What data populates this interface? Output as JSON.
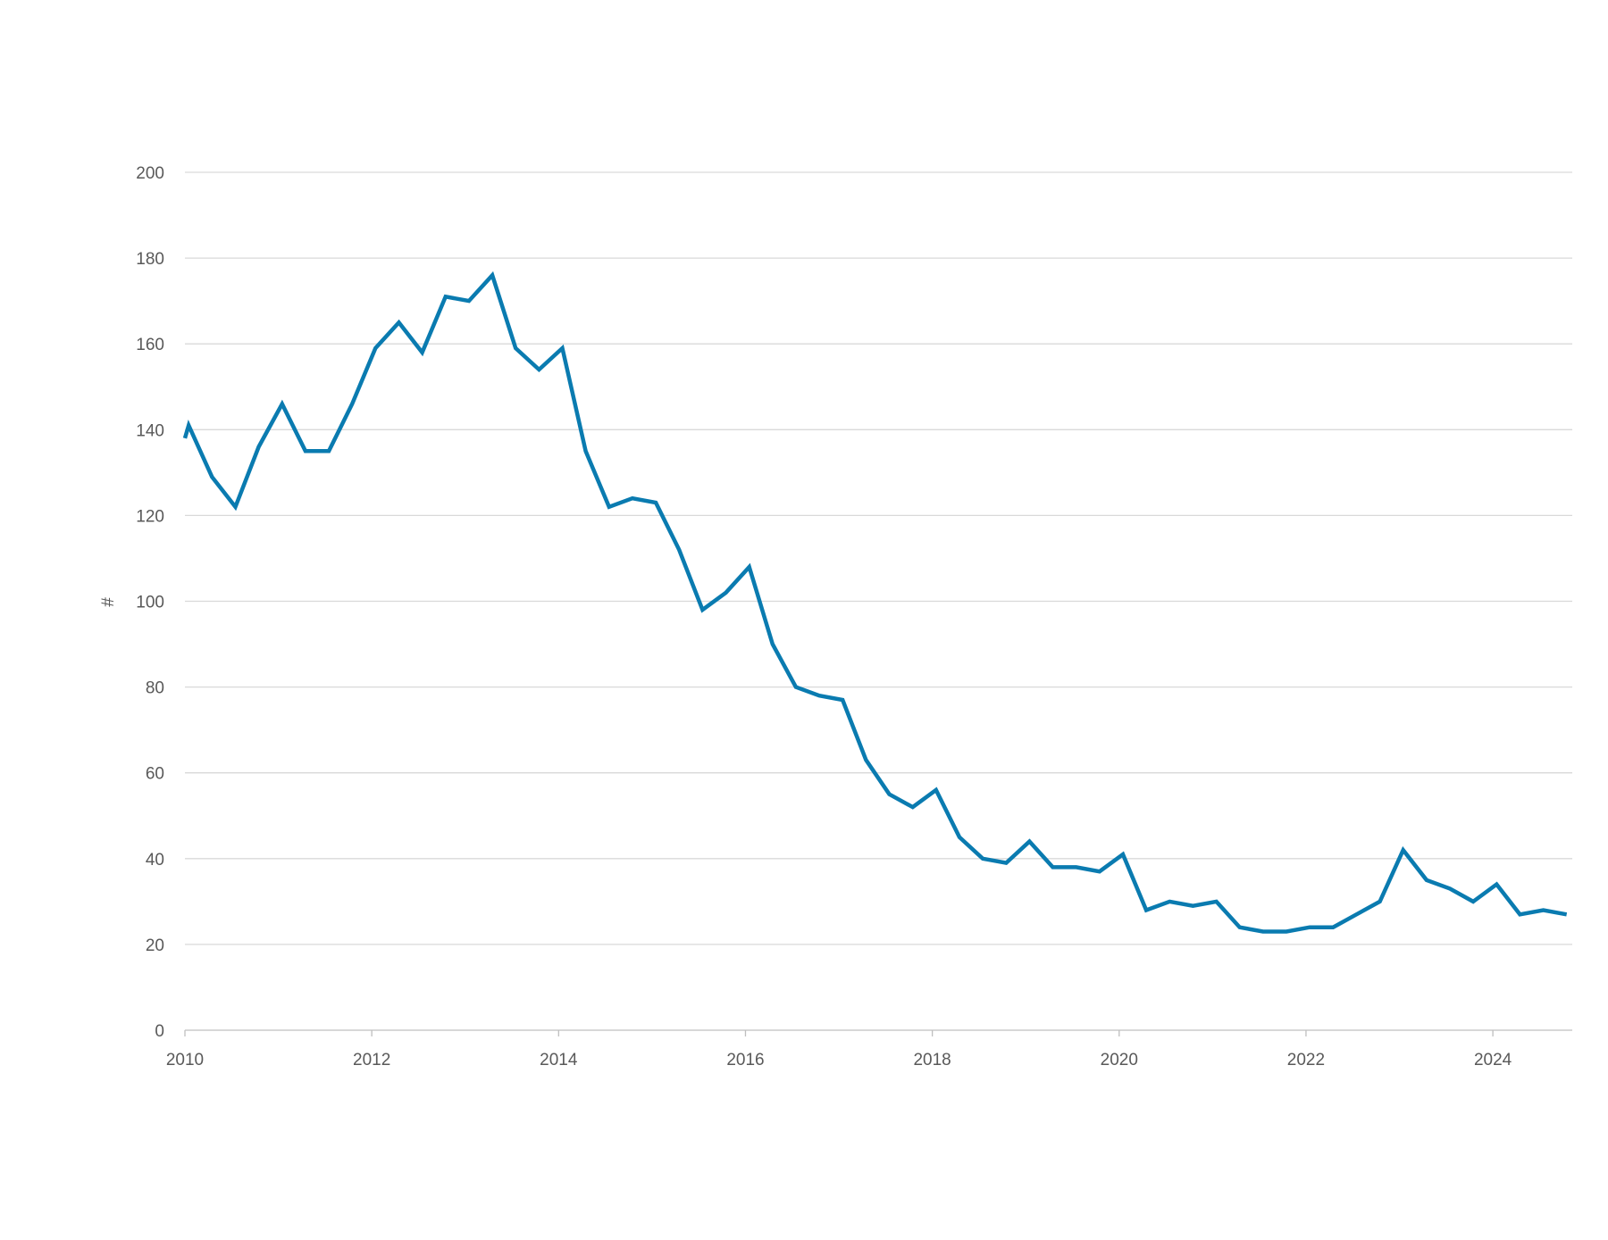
{
  "chart_data": {
    "type": "line",
    "title": "",
    "xlabel": "",
    "ylabel": "#",
    "xlim": [
      2010,
      2024.85
    ],
    "ylim": [
      0,
      200
    ],
    "y_ticks": [
      0,
      20,
      40,
      60,
      80,
      100,
      120,
      140,
      160,
      180,
      200
    ],
    "x_ticks": [
      2010,
      2012,
      2014,
      2016,
      2018,
      2020,
      2022,
      2024
    ],
    "x_tick_labels": [
      "2010",
      "2012",
      "2014",
      "2016",
      "2018",
      "2020",
      "2022",
      "2024"
    ],
    "grid": "horizontal",
    "legend": "none",
    "colors": {
      "series": "#0a7bb0",
      "grid": "#d9d9d9",
      "axis": "#bfbfbf",
      "text": "#595959"
    },
    "series": [
      {
        "x": [
          2010.0,
          2010.04,
          2010.29,
          2010.54,
          2010.79,
          2011.04,
          2011.29,
          2011.54,
          2011.79,
          2012.04,
          2012.29,
          2012.54,
          2012.79,
          2013.04,
          2013.29,
          2013.54,
          2013.79,
          2014.04,
          2014.29,
          2014.54,
          2014.79,
          2015.04,
          2015.29,
          2015.54,
          2015.79,
          2016.04,
          2016.29,
          2016.54,
          2016.79,
          2017.04,
          2017.29,
          2017.54,
          2017.79,
          2018.04,
          2018.29,
          2018.54,
          2018.79,
          2019.04,
          2019.29,
          2019.54,
          2019.79,
          2020.04,
          2020.29,
          2020.54,
          2020.79,
          2021.04,
          2021.29,
          2021.54,
          2021.79,
          2022.04,
          2022.29,
          2022.54,
          2022.79,
          2023.04,
          2023.29,
          2023.54,
          2023.79,
          2024.04,
          2024.29,
          2024.54,
          2024.79
        ],
        "values": [
          138,
          141,
          129,
          122,
          136,
          146,
          135,
          135,
          146,
          159,
          165,
          158,
          171,
          170,
          176,
          159,
          154,
          159,
          135,
          122,
          124,
          123,
          112,
          98,
          102,
          108,
          90,
          80,
          78,
          77,
          63,
          55,
          52,
          56,
          45,
          40,
          39,
          44,
          38,
          38,
          37,
          41,
          28,
          30,
          29,
          30,
          24,
          23,
          23,
          24,
          24,
          27,
          30,
          42,
          35,
          33,
          30,
          34,
          27,
          28,
          27
        ]
      }
    ]
  }
}
